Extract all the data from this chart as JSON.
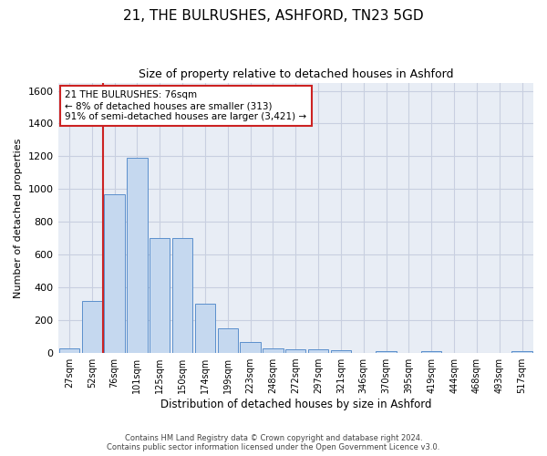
{
  "title1": "21, THE BULRUSHES, ASHFORD, TN23 5GD",
  "title2": "Size of property relative to detached houses in Ashford",
  "xlabel": "Distribution of detached houses by size in Ashford",
  "ylabel": "Number of detached properties",
  "footer1": "Contains HM Land Registry data © Crown copyright and database right 2024.",
  "footer2": "Contains public sector information licensed under the Open Government Licence v3.0.",
  "annotation_line1": "21 THE BULRUSHES: 76sqm",
  "annotation_line2": "← 8% of detached houses are smaller (313)",
  "annotation_line3": "91% of semi-detached houses are larger (3,421) →",
  "bar_categories": [
    "27sqm",
    "52sqm",
    "76sqm",
    "101sqm",
    "125sqm",
    "150sqm",
    "174sqm",
    "199sqm",
    "223sqm",
    "248sqm",
    "272sqm",
    "297sqm",
    "321sqm",
    "346sqm",
    "370sqm",
    "395sqm",
    "419sqm",
    "444sqm",
    "468sqm",
    "493sqm",
    "517sqm"
  ],
  "bar_values": [
    30,
    320,
    970,
    1190,
    700,
    700,
    300,
    150,
    65,
    30,
    20,
    20,
    15,
    0,
    10,
    0,
    10,
    0,
    0,
    0,
    10
  ],
  "bar_color": "#c5d8ef",
  "bar_edge_color": "#5b8fcc",
  "highlight_color": "#cc2222",
  "ylim": [
    0,
    1650
  ],
  "yticks": [
    0,
    200,
    400,
    600,
    800,
    1000,
    1200,
    1400,
    1600
  ],
  "grid_color": "#c8cfe0",
  "bg_color": "#e8edf5",
  "annotation_box_color": "#cc2222",
  "vline_x": 1.5
}
